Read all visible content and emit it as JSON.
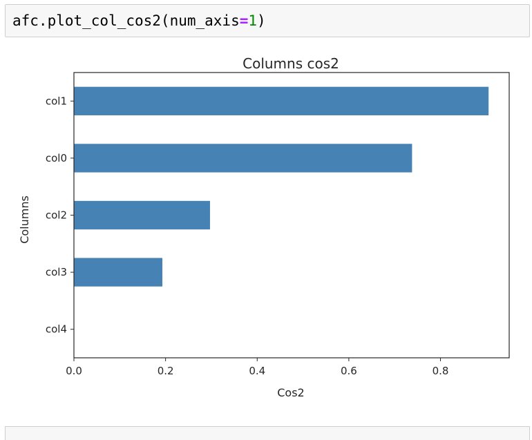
{
  "code_cell": {
    "tokens": [
      {
        "text": "afc.plot_col_cos2(num_axis",
        "kind": "plain"
      },
      {
        "text": "=",
        "kind": "op"
      },
      {
        "text": "1",
        "kind": "num"
      },
      {
        "text": ")",
        "kind": "plain"
      }
    ]
  },
  "chart_data": {
    "type": "bar",
    "orientation": "horizontal",
    "title": "Columns cos2",
    "xlabel": "Cos2",
    "ylabel": "Columns",
    "categories": [
      "col1",
      "col0",
      "col2",
      "col3",
      "col4"
    ],
    "values": [
      0.905,
      0.738,
      0.297,
      0.193,
      0.0
    ],
    "xlim": [
      0.0,
      0.95
    ],
    "xticks": [
      0.0,
      0.2,
      0.4,
      0.6,
      0.8
    ],
    "xtick_labels": [
      "0.0",
      "0.2",
      "0.4",
      "0.6",
      "0.8"
    ],
    "bar_color": "#4682b4",
    "grid": false
  }
}
